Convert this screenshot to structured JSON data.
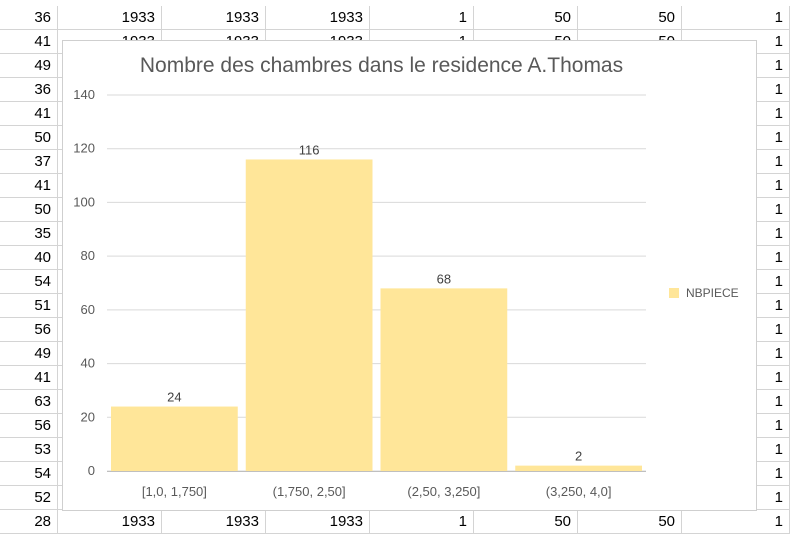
{
  "spreadsheet": {
    "rows": [
      [
        "36",
        "1933",
        "1933",
        "1933",
        "1",
        "50",
        "50",
        "1"
      ],
      [
        "41",
        "1933",
        "1933",
        "1933",
        "1",
        "50",
        "50",
        "1"
      ],
      [
        "49",
        "",
        "",
        "",
        "",
        "",
        "",
        "1"
      ],
      [
        "36",
        "",
        "",
        "",
        "",
        "",
        "",
        "1"
      ],
      [
        "41",
        "",
        "",
        "",
        "",
        "",
        "",
        "1"
      ],
      [
        "50",
        "",
        "",
        "",
        "",
        "",
        "",
        "1"
      ],
      [
        "37",
        "",
        "",
        "",
        "",
        "",
        "",
        "1"
      ],
      [
        "41",
        "",
        "",
        "",
        "",
        "",
        "",
        "1"
      ],
      [
        "50",
        "",
        "",
        "",
        "",
        "",
        "",
        "1"
      ],
      [
        "35",
        "",
        "",
        "",
        "",
        "",
        "",
        "1"
      ],
      [
        "40",
        "",
        "",
        "",
        "",
        "",
        "",
        "1"
      ],
      [
        "54",
        "",
        "",
        "",
        "",
        "",
        "",
        "1"
      ],
      [
        "51",
        "",
        "",
        "",
        "",
        "",
        "",
        "1"
      ],
      [
        "56",
        "",
        "",
        "",
        "",
        "",
        "",
        "1"
      ],
      [
        "49",
        "",
        "",
        "",
        "",
        "",
        "",
        "1"
      ],
      [
        "41",
        "",
        "",
        "",
        "",
        "",
        "",
        "1"
      ],
      [
        "63",
        "",
        "",
        "",
        "",
        "",
        "",
        "1"
      ],
      [
        "56",
        "",
        "",
        "",
        "",
        "",
        "",
        "1"
      ],
      [
        "53",
        "",
        "",
        "",
        "",
        "",
        "",
        "1"
      ],
      [
        "54",
        "",
        "",
        "",
        "",
        "",
        "",
        "1"
      ],
      [
        "52",
        "",
        "",
        "",
        "",
        "",
        "",
        "1"
      ],
      [
        "28",
        "1933",
        "1933",
        "1933",
        "1",
        "50",
        "50",
        "1"
      ]
    ]
  },
  "chart_data": {
    "type": "bar",
    "title": "Nombre des chambres dans le residence A.Thomas",
    "categories": [
      "[1,0, 1,750]",
      "(1,750, 2,50]",
      "(2,50, 3,250]",
      "(3,250, 4,0]"
    ],
    "series": [
      {
        "name": "NBPIECE",
        "values": [
          24,
          116,
          68,
          2
        ]
      }
    ],
    "ylim": [
      0,
      140
    ],
    "yticks": [
      "0",
      "20",
      "40",
      "60",
      "80",
      "100",
      "120",
      "140"
    ],
    "grid": true,
    "legend": "right",
    "bar_color": "#FFE699",
    "xlabel": "",
    "ylabel": ""
  }
}
